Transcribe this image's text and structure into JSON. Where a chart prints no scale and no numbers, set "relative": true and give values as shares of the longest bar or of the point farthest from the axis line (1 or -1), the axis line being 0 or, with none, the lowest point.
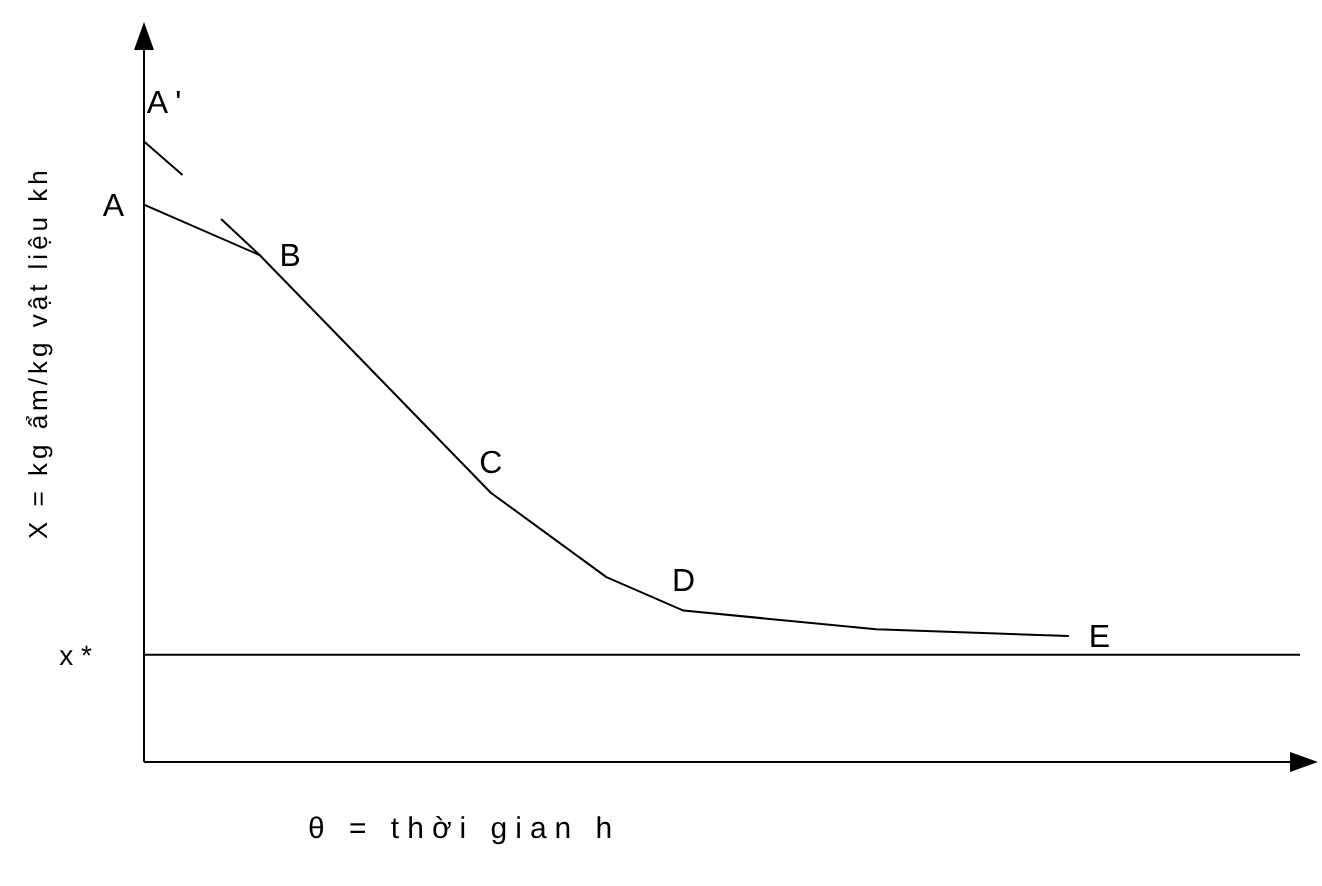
{
  "chart_data": {
    "type": "line",
    "relative": true,
    "xlabel": "θ = thời gian h",
    "ylabel": "X = kg ẩm/kg vật liệu kh",
    "grid": false,
    "legend": false,
    "marker": "none",
    "line_style": "solid",
    "categories": [
      null,
      null,
      null,
      null,
      null,
      null,
      null,
      null,
      null,
      null,
      null,
      null,
      null,
      null,
      null,
      null,
      null,
      null,
      null,
      null,
      null,
      null,
      null,
      null,
      null,
      null,
      null,
      null,
      null,
      null,
      null
    ],
    "series": [
      {
        "color": "#000000",
        "values": [
          0.898,
          null,
          null,
          0.817,
          null,
          null,
          null,
          null,
          null,
          0.434,
          null,
          null,
          0.298,
          null,
          0.244,
          null,
          null,
          null,
          null,
          0.214,
          null,
          null,
          null,
          null,
          0.203,
          null,
          null,
          null,
          null,
          null,
          null
        ]
      },
      {
        "color": "#000000",
        "values": [
          1.0,
          0.946,
          null,
          null,
          null,
          null,
          null,
          null,
          null,
          null,
          null,
          null,
          null,
          null,
          null,
          null,
          null,
          null,
          null,
          null,
          null,
          null,
          null,
          null,
          null,
          null,
          null,
          null,
          null,
          null,
          null
        ]
      },
      {
        "color": "#000000",
        "values": [
          null,
          null,
          0.875,
          0.817,
          null,
          null,
          null,
          null,
          null,
          null,
          null,
          null,
          null,
          null,
          null,
          null,
          null,
          null,
          null,
          null,
          null,
          null,
          null,
          null,
          null,
          null,
          null,
          null,
          null,
          null,
          null
        ]
      }
    ],
    "ref_lines": [
      {
        "axis": "y",
        "value": 0.173,
        "label": "x *",
        "color": "#000000"
      }
    ],
    "annotations": [
      "A",
      "A '",
      "B",
      "C",
      "D",
      "E"
    ]
  }
}
